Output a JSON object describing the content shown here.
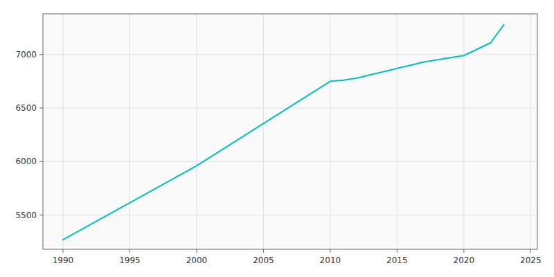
{
  "chart_data": {
    "type": "line",
    "x": [
      1990,
      2000,
      2010,
      2011,
      2012,
      2013,
      2014,
      2015,
      2016,
      2017,
      2018,
      2019,
      2020,
      2021,
      2022,
      2023
    ],
    "values": [
      5270,
      5960,
      6750,
      6760,
      6780,
      6810,
      6840,
      6870,
      6900,
      6930,
      6950,
      6970,
      6990,
      7050,
      7110,
      7280
    ],
    "color": "#00BFBF",
    "xlim": [
      1988.5,
      2025.5
    ],
    "ylim": [
      5180,
      7380
    ],
    "xticks": [
      1990,
      1995,
      2000,
      2005,
      2010,
      2015,
      2020,
      2025
    ],
    "yticks": [
      5500,
      6000,
      6500,
      7000
    ],
    "grid": true
  }
}
